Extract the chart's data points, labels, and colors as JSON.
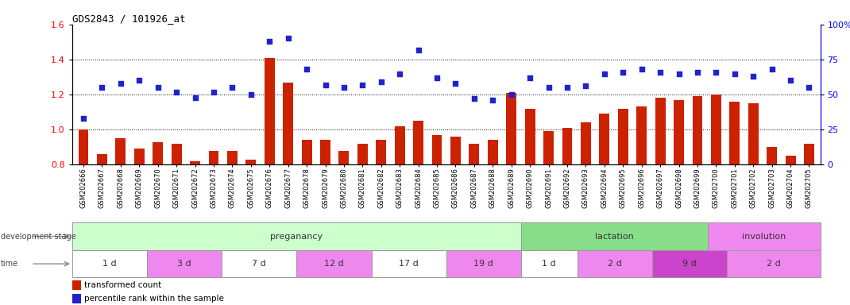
{
  "title": "GDS2843 / 101926_at",
  "samples": [
    "GSM202666",
    "GSM202667",
    "GSM202668",
    "GSM202669",
    "GSM202670",
    "GSM202671",
    "GSM202672",
    "GSM202673",
    "GSM202674",
    "GSM202675",
    "GSM202676",
    "GSM202677",
    "GSM202678",
    "GSM202679",
    "GSM202680",
    "GSM202681",
    "GSM202682",
    "GSM202683",
    "GSM202684",
    "GSM202685",
    "GSM202686",
    "GSM202687",
    "GSM202688",
    "GSM202689",
    "GSM202690",
    "GSM202691",
    "GSM202692",
    "GSM202693",
    "GSM202694",
    "GSM202695",
    "GSM202696",
    "GSM202697",
    "GSM202698",
    "GSM202699",
    "GSM202700",
    "GSM202701",
    "GSM202702",
    "GSM202703",
    "GSM202704",
    "GSM202705"
  ],
  "red_values": [
    1.0,
    0.86,
    0.95,
    0.89,
    0.93,
    0.92,
    0.82,
    0.88,
    0.88,
    0.83,
    1.41,
    1.27,
    0.94,
    0.94,
    0.88,
    0.92,
    0.94,
    1.02,
    1.05,
    0.97,
    0.96,
    0.92,
    0.94,
    1.21,
    1.12,
    0.99,
    1.01,
    1.04,
    1.09,
    1.12,
    1.13,
    1.18,
    1.17,
    1.19,
    1.2,
    1.16,
    1.15,
    0.9,
    0.85,
    0.92
  ],
  "blue_values": [
    33,
    55,
    58,
    60,
    55,
    52,
    48,
    52,
    55,
    50,
    88,
    90,
    68,
    57,
    55,
    57,
    59,
    65,
    82,
    62,
    58,
    47,
    46,
    50,
    62,
    55,
    55,
    56,
    65,
    66,
    68,
    66,
    65,
    66,
    66,
    65,
    63,
    68,
    60,
    55
  ],
  "ylim_left": [
    0.8,
    1.6
  ],
  "ylim_right": [
    0,
    100
  ],
  "yticks_left": [
    0.8,
    1.0,
    1.2,
    1.4,
    1.6
  ],
  "yticks_right": [
    0,
    25,
    50,
    75,
    100
  ],
  "ytick_labels_right": [
    "0",
    "25",
    "50",
    "75",
    "100%"
  ],
  "hlines": [
    1.0,
    1.2,
    1.4
  ],
  "bar_color": "#cc2200",
  "dot_color": "#2222cc",
  "development_stages": [
    {
      "label": "preganancy",
      "start": 0,
      "end": 24,
      "color": "#ccffcc"
    },
    {
      "label": "lactation",
      "start": 24,
      "end": 34,
      "color": "#88dd88"
    },
    {
      "label": "involution",
      "start": 34,
      "end": 40,
      "color": "#ee88ee"
    }
  ],
  "time_periods": [
    {
      "label": "1 d",
      "start": 0,
      "end": 4,
      "color": "#ffffff"
    },
    {
      "label": "3 d",
      "start": 4,
      "end": 8,
      "color": "#ee88ee"
    },
    {
      "label": "7 d",
      "start": 8,
      "end": 12,
      "color": "#ffffff"
    },
    {
      "label": "12 d",
      "start": 12,
      "end": 16,
      "color": "#ee88ee"
    },
    {
      "label": "17 d",
      "start": 16,
      "end": 20,
      "color": "#ffffff"
    },
    {
      "label": "19 d",
      "start": 20,
      "end": 24,
      "color": "#ee88ee"
    },
    {
      "label": "1 d",
      "start": 24,
      "end": 27,
      "color": "#ffffff"
    },
    {
      "label": "2 d",
      "start": 27,
      "end": 31,
      "color": "#ee88ee"
    },
    {
      "label": "9 d",
      "start": 31,
      "end": 35,
      "color": "#cc44cc"
    },
    {
      "label": "2 d",
      "start": 35,
      "end": 40,
      "color": "#ee88ee"
    }
  ],
  "legend_red": "transformed count",
  "legend_blue": "percentile rank within the sample",
  "bar_width": 0.55,
  "bg_color": "#ffffff"
}
